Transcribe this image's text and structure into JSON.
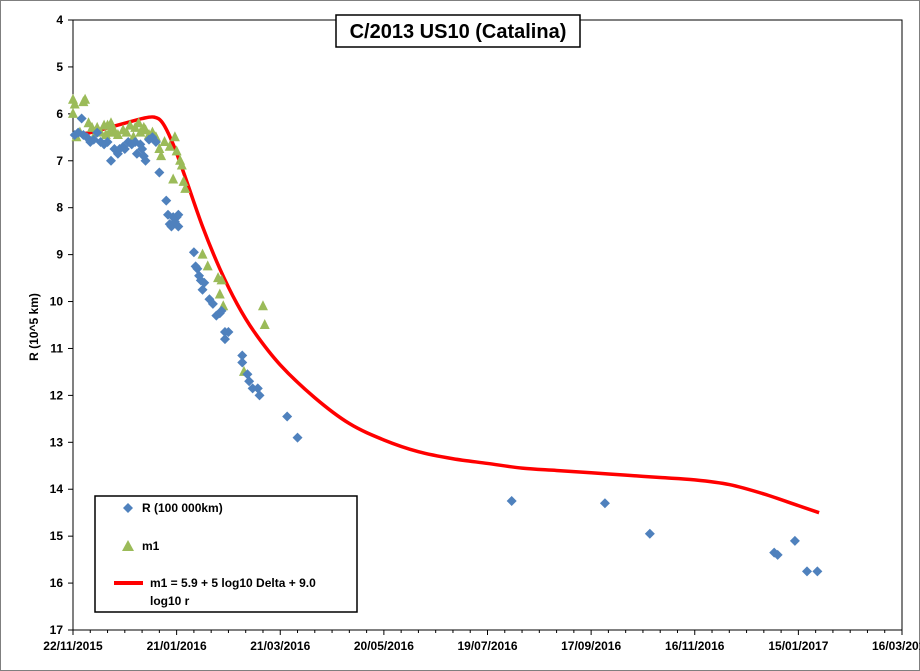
{
  "chart_data": {
    "type": "scatter",
    "title": "C/2013 US10 (Catalina)",
    "xlabel": "",
    "ylabel": "R (10^5 km)",
    "x_ticks": [
      "22/11/2015",
      "21/01/2016",
      "21/03/2016",
      "20/05/2016",
      "19/07/2016",
      "17/09/2016",
      "16/11/2016",
      "15/01/2017",
      "16/03/2017"
    ],
    "x_tick_days": [
      0,
      60,
      120,
      180,
      240,
      300,
      360,
      420,
      480
    ],
    "x_range_days": [
      0,
      480
    ],
    "y_ticks": [
      "4",
      "5",
      "6",
      "7",
      "8",
      "9",
      "10",
      "11",
      "12",
      "13",
      "14",
      "15",
      "16",
      "17"
    ],
    "ylim": [
      4,
      17
    ],
    "y_inverted": true,
    "grid": false,
    "legend_position": "bottom-left",
    "colors": {
      "R": "#4f81bd",
      "m1": "#9bbb59",
      "model": "#ff0000"
    },
    "series": [
      {
        "name": "R (100 000km)",
        "marker": "diamond",
        "points": [
          [
            1,
            6.45
          ],
          [
            3,
            6.4
          ],
          [
            5,
            6.1
          ],
          [
            6,
            6.45
          ],
          [
            8,
            6.5
          ],
          [
            10,
            6.6
          ],
          [
            12,
            6.55
          ],
          [
            14,
            6.4
          ],
          [
            16,
            6.6
          ],
          [
            18,
            6.65
          ],
          [
            20,
            6.6
          ],
          [
            22,
            7.0
          ],
          [
            24,
            6.75
          ],
          [
            26,
            6.85
          ],
          [
            27,
            6.75
          ],
          [
            29,
            6.7
          ],
          [
            30,
            6.75
          ],
          [
            32,
            6.6
          ],
          [
            34,
            6.65
          ],
          [
            36,
            6.6
          ],
          [
            37,
            6.85
          ],
          [
            39,
            6.65
          ],
          [
            40,
            6.75
          ],
          [
            41,
            6.9
          ],
          [
            42,
            7.0
          ],
          [
            44,
            6.55
          ],
          [
            46,
            6.5
          ],
          [
            48,
            6.6
          ],
          [
            50,
            7.25
          ],
          [
            54,
            7.85
          ],
          [
            55,
            8.15
          ],
          [
            56,
            8.35
          ],
          [
            57,
            8.4
          ],
          [
            58,
            8.2
          ],
          [
            59,
            8.3
          ],
          [
            60,
            8.2
          ],
          [
            61,
            8.15
          ],
          [
            61,
            8.4
          ],
          [
            70,
            8.95
          ],
          [
            71,
            9.25
          ],
          [
            72,
            9.3
          ],
          [
            73,
            9.45
          ],
          [
            74,
            9.55
          ],
          [
            75,
            9.75
          ],
          [
            76,
            9.6
          ],
          [
            79,
            9.95
          ],
          [
            81,
            10.05
          ],
          [
            83,
            10.3
          ],
          [
            85,
            10.25
          ],
          [
            86,
            10.2
          ],
          [
            88,
            10.65
          ],
          [
            88,
            10.8
          ],
          [
            90,
            10.65
          ],
          [
            98,
            11.15
          ],
          [
            98,
            11.3
          ],
          [
            101,
            11.55
          ],
          [
            102,
            11.7
          ],
          [
            104,
            11.85
          ],
          [
            107,
            11.85
          ],
          [
            108,
            12.0
          ],
          [
            124,
            12.45
          ],
          [
            130,
            12.9
          ],
          [
            254,
            14.25
          ],
          [
            308,
            14.3
          ],
          [
            334,
            14.95
          ],
          [
            406,
            15.35
          ],
          [
            408,
            15.4
          ],
          [
            418,
            15.1
          ],
          [
            425,
            15.75
          ],
          [
            431,
            15.75
          ]
        ]
      },
      {
        "name": "m1",
        "marker": "triangle",
        "points": [
          [
            0,
            5.7
          ],
          [
            0,
            6.0
          ],
          [
            1,
            5.8
          ],
          [
            2,
            6.5
          ],
          [
            4,
            6.4
          ],
          [
            6,
            5.75
          ],
          [
            7,
            5.7
          ],
          [
            9,
            6.2
          ],
          [
            11,
            6.3
          ],
          [
            12,
            6.5
          ],
          [
            14,
            6.3
          ],
          [
            16,
            6.4
          ],
          [
            18,
            6.25
          ],
          [
            19,
            6.45
          ],
          [
            20,
            6.25
          ],
          [
            21,
            6.4
          ],
          [
            22,
            6.2
          ],
          [
            23,
            6.3
          ],
          [
            24,
            6.4
          ],
          [
            26,
            6.45
          ],
          [
            29,
            6.35
          ],
          [
            31,
            6.4
          ],
          [
            33,
            6.25
          ],
          [
            35,
            6.5
          ],
          [
            36,
            6.3
          ],
          [
            38,
            6.2
          ],
          [
            39,
            6.4
          ],
          [
            41,
            6.3
          ],
          [
            42,
            6.35
          ],
          [
            44,
            6.45
          ],
          [
            46,
            6.4
          ],
          [
            48,
            6.5
          ],
          [
            50,
            6.75
          ],
          [
            51,
            6.9
          ],
          [
            53,
            6.6
          ],
          [
            56,
            6.7
          ],
          [
            58,
            7.4
          ],
          [
            59,
            6.5
          ],
          [
            60,
            6.8
          ],
          [
            62,
            7.0
          ],
          [
            63,
            7.1
          ],
          [
            64,
            7.45
          ],
          [
            65,
            7.6
          ],
          [
            75,
            9.0
          ],
          [
            78,
            9.25
          ],
          [
            84,
            9.5
          ],
          [
            85,
            9.85
          ],
          [
            86,
            9.55
          ],
          [
            87,
            10.1
          ],
          [
            99,
            11.5
          ],
          [
            110,
            10.1
          ],
          [
            111,
            10.5
          ]
        ]
      },
      {
        "name": "m1 = 5.9 + 5 log10 Delta + 9.0 log10 r",
        "marker": "line",
        "points": [
          [
            0,
            6.45
          ],
          [
            10,
            6.4
          ],
          [
            20,
            6.3
          ],
          [
            30,
            6.2
          ],
          [
            40,
            6.1
          ],
          [
            47,
            6.07
          ],
          [
            52,
            6.2
          ],
          [
            58,
            6.65
          ],
          [
            65,
            7.35
          ],
          [
            75,
            8.4
          ],
          [
            85,
            9.3
          ],
          [
            95,
            10.05
          ],
          [
            105,
            10.65
          ],
          [
            120,
            11.35
          ],
          [
            140,
            12.05
          ],
          [
            160,
            12.6
          ],
          [
            180,
            12.95
          ],
          [
            200,
            13.2
          ],
          [
            220,
            13.35
          ],
          [
            240,
            13.45
          ],
          [
            260,
            13.55
          ],
          [
            280,
            13.6
          ],
          [
            300,
            13.65
          ],
          [
            320,
            13.7
          ],
          [
            340,
            13.75
          ],
          [
            360,
            13.8
          ],
          [
            380,
            13.9
          ],
          [
            400,
            14.1
          ],
          [
            420,
            14.35
          ],
          [
            432,
            14.5
          ]
        ]
      }
    ]
  }
}
